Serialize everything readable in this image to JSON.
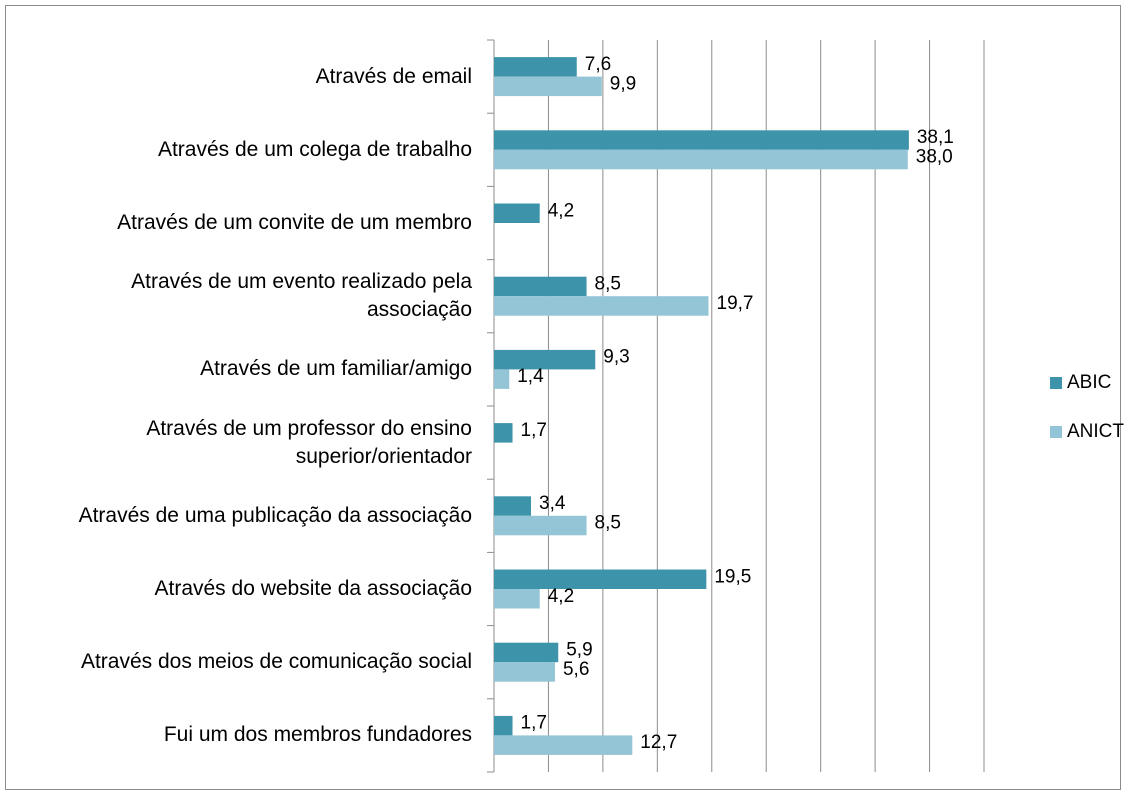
{
  "chart_data": {
    "type": "bar",
    "orientation": "horizontal",
    "categories": [
      "Através de email",
      "Através de um colega de trabalho",
      "Através de um convite de um membro",
      "Através de um evento realizado pela associação",
      "Através de um familiar/amigo",
      "Através de um professor do ensino superior/orientador",
      "Através de uma publicação da associação",
      "Através do website da associação",
      "Através dos meios de comunicação social",
      "Fui um dos membros fundadores"
    ],
    "series": [
      {
        "name": "ABIC",
        "color": "#3d94aa",
        "values": [
          7.6,
          38.1,
          4.2,
          8.5,
          9.3,
          1.7,
          3.4,
          19.5,
          5.9,
          1.7
        ],
        "value_labels": [
          "7,6",
          "38,1",
          "4,2",
          "8,5",
          "9,3",
          "1,7",
          "3,4",
          "19,5",
          "5,9",
          "1,7"
        ]
      },
      {
        "name": "ANICT",
        "color": "#94c5d6",
        "values": [
          9.9,
          38.0,
          null,
          19.7,
          1.4,
          null,
          8.5,
          4.2,
          5.6,
          12.7
        ],
        "value_labels": [
          "9,9",
          "38,0",
          null,
          "19,7",
          "1,4",
          null,
          "8,5",
          "4,2",
          "5,6",
          "12,7"
        ]
      }
    ],
    "xlim": [
      0,
      45
    ],
    "xticks": [
      0,
      5,
      10,
      15,
      20,
      25,
      30,
      35,
      40,
      45
    ],
    "grid": true,
    "legend": "right"
  }
}
